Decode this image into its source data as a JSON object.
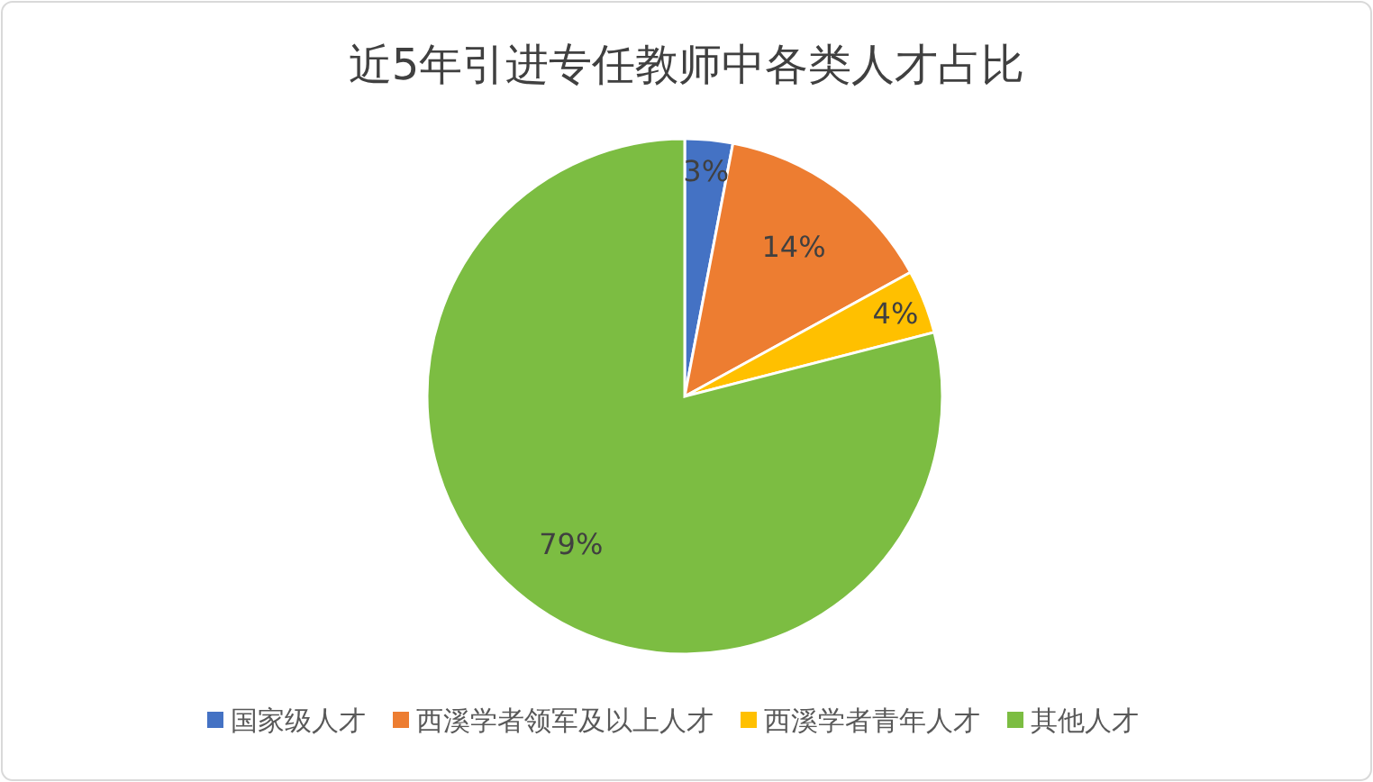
{
  "chart_data": {
    "type": "pie",
    "title": "近5年引进专任教师中各类人才占比",
    "categories": [
      "国家级人才",
      "西溪学者领军及以上人才",
      "西溪学者青年人才",
      "其他人才"
    ],
    "values": [
      3,
      14,
      4,
      79
    ],
    "colors": [
      "#4472c4",
      "#ed7d31",
      "#ffc000",
      "#7cbd42"
    ],
    "value_labels": [
      "3%",
      "14%",
      "4%",
      "79%"
    ],
    "legend": "bottom"
  }
}
